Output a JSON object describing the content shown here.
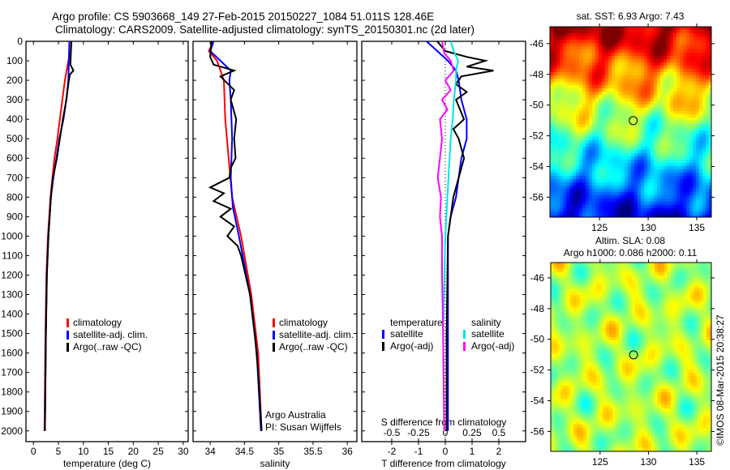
{
  "title_line1": "Argo profile: CS 5903668_149 27-Feb-2015 20150227_1084 51.011S 128.46E",
  "title_line2": "Climatology: CARS2009. Satellite-adjusted climatology: synTS_20150301.nc (2d later)",
  "credit": "©IMOS 08-Mar-2015 20:38:27",
  "colors": {
    "climatology": "#ff0000",
    "satellite": "#0000ff",
    "argo": "#000000",
    "sal_satellite": "#00e5e5",
    "sal_argo": "#ff00ff"
  },
  "chart_data": [
    {
      "type": "line",
      "xlabel": "temperature (deg C)",
      "ylabel": "",
      "xlim": [
        -1.5,
        31
      ],
      "ylim": [
        2055,
        0
      ],
      "xticks": [
        0,
        5,
        10,
        15,
        20,
        25,
        30
      ],
      "yticks": [
        0,
        100,
        200,
        300,
        400,
        500,
        600,
        700,
        800,
        900,
        1000,
        1100,
        1200,
        1300,
        1400,
        1500,
        1600,
        1700,
        1800,
        1900,
        2000
      ],
      "legend": [
        "climatology",
        "satellite-adj. clim.",
        "Argo(..raw -QC)"
      ],
      "series": [
        {
          "name": "climatology",
          "color": "climatology",
          "points": [
            [
              0,
              7.6
            ],
            [
              50,
              7.5
            ],
            [
              100,
              7.0
            ],
            [
              200,
              6.3
            ],
            [
              300,
              5.8
            ],
            [
              400,
              5.3
            ],
            [
              500,
              4.8
            ],
            [
              600,
              4.2
            ],
            [
              700,
              3.8
            ],
            [
              800,
              3.4
            ],
            [
              1000,
              2.9
            ],
            [
              1200,
              2.6
            ],
            [
              1500,
              2.4
            ],
            [
              2000,
              2.2
            ]
          ]
        },
        {
          "name": "satellite-adj. clim.",
          "color": "satellite",
          "points": [
            [
              0,
              7.2
            ],
            [
              100,
              7.1
            ],
            [
              200,
              7.0
            ],
            [
              300,
              6.6
            ],
            [
              400,
              6.0
            ],
            [
              500,
              5.2
            ],
            [
              600,
              4.6
            ],
            [
              700,
              4.0
            ],
            [
              800,
              3.5
            ],
            [
              1000,
              3.0
            ],
            [
              1200,
              2.7
            ],
            [
              1500,
              2.5
            ],
            [
              2000,
              2.3
            ]
          ]
        },
        {
          "name": "Argo(..raw -QC)",
          "color": "argo",
          "points": [
            [
              0,
              7.6
            ],
            [
              60,
              7.5
            ],
            [
              120,
              7.4
            ],
            [
              150,
              8.0
            ],
            [
              170,
              7.3
            ],
            [
              200,
              7.1
            ],
            [
              300,
              6.6
            ],
            [
              400,
              5.9
            ],
            [
              500,
              5.3
            ],
            [
              600,
              4.7
            ],
            [
              700,
              3.9
            ],
            [
              800,
              3.5
            ],
            [
              1000,
              3.0
            ],
            [
              1200,
              2.7
            ],
            [
              1500,
              2.5
            ],
            [
              2000,
              2.3
            ]
          ]
        }
      ]
    },
    {
      "type": "line",
      "xlabel": "salinity",
      "xlim": [
        33.75,
        36.14
      ],
      "ylim": [
        2055,
        0
      ],
      "xticks": [
        34,
        34.5,
        35,
        35.5,
        36
      ],
      "legend": [
        "climatology",
        "satellite-adj. clim.",
        "Argo(..raw -QC)"
      ],
      "annotation": [
        "Argo Australia",
        "PI: Susan Wijffels"
      ],
      "series": [
        {
          "name": "climatology",
          "color": "climatology",
          "points": [
            [
              0,
              34.05
            ],
            [
              50,
              33.98
            ],
            [
              100,
              34.1
            ],
            [
              200,
              34.2
            ],
            [
              400,
              34.22
            ],
            [
              600,
              34.27
            ],
            [
              800,
              34.32
            ],
            [
              1000,
              34.45
            ],
            [
              1300,
              34.6
            ],
            [
              1600,
              34.7
            ],
            [
              2000,
              34.75
            ]
          ]
        },
        {
          "name": "satellite-adj. clim.",
          "color": "satellite",
          "points": [
            [
              0,
              34.05
            ],
            [
              50,
              34.0
            ],
            [
              100,
              34.15
            ],
            [
              150,
              34.3
            ],
            [
              200,
              34.28
            ],
            [
              300,
              34.3
            ],
            [
              500,
              34.32
            ],
            [
              700,
              34.3
            ],
            [
              850,
              34.33
            ],
            [
              1000,
              34.42
            ],
            [
              1300,
              34.58
            ],
            [
              1600,
              34.68
            ],
            [
              2000,
              34.74
            ]
          ]
        },
        {
          "name": "Argo(..raw -QC)",
          "color": "argo",
          "points": [
            [
              0,
              34.02
            ],
            [
              80,
              34.0
            ],
            [
              120,
              34.05
            ],
            [
              150,
              34.35
            ],
            [
              180,
              34.15
            ],
            [
              250,
              34.35
            ],
            [
              300,
              34.3
            ],
            [
              400,
              34.38
            ],
            [
              500,
              34.35
            ],
            [
              600,
              34.37
            ],
            [
              650,
              34.3
            ],
            [
              700,
              34.28
            ],
            [
              750,
              34.0
            ],
            [
              780,
              34.2
            ],
            [
              820,
              34.05
            ],
            [
              860,
              34.3
            ],
            [
              900,
              34.15
            ],
            [
              950,
              34.35
            ],
            [
              1000,
              34.25
            ],
            [
              1050,
              34.4
            ],
            [
              1100,
              34.45
            ],
            [
              1300,
              34.58
            ],
            [
              1500,
              34.65
            ],
            [
              1700,
              34.7
            ],
            [
              2000,
              34.75
            ]
          ]
        }
      ]
    },
    {
      "type": "line",
      "xlabel": "T difference from climatology",
      "x2label": "S difference from climatology",
      "xlim": [
        -3.12,
        3.0
      ],
      "x2lim": [
        -0.78,
        0.75
      ],
      "ylim": [
        2055,
        0
      ],
      "xticks": [
        -2,
        -1,
        0,
        1,
        2
      ],
      "x2ticks": [
        -0.5,
        -0.25,
        0,
        0.25,
        0.5
      ],
      "legend_temperature": {
        "title": "temperature",
        "items": [
          "satellite",
          "Argo(-adj)"
        ]
      },
      "legend_salinity": {
        "title": "salinity",
        "items": [
          "satellite",
          "Argo(-adj)"
        ]
      },
      "series": [
        {
          "name": "T satellite",
          "axis": "T",
          "color": "satellite",
          "points": [
            [
              0,
              -0.7
            ],
            [
              50,
              -0.3
            ],
            [
              100,
              0.1
            ],
            [
              150,
              0.4
            ],
            [
              200,
              0.5
            ],
            [
              300,
              0.6
            ],
            [
              400,
              0.8
            ],
            [
              500,
              0.8
            ],
            [
              600,
              0.6
            ],
            [
              700,
              0.5
            ],
            [
              800,
              0.4
            ],
            [
              900,
              0.2
            ],
            [
              1000,
              0.1
            ],
            [
              2000,
              0.1
            ]
          ]
        },
        {
          "name": "T Argo(-adj)",
          "axis": "T",
          "color": "argo",
          "points": [
            [
              0,
              -0.3
            ],
            [
              50,
              0.0
            ],
            [
              80,
              0.8
            ],
            [
              100,
              1.5
            ],
            [
              130,
              0.8
            ],
            [
              150,
              1.8
            ],
            [
              180,
              0.6
            ],
            [
              220,
              0.4
            ],
            [
              260,
              0.8
            ],
            [
              300,
              0.4
            ],
            [
              400,
              0.7
            ],
            [
              450,
              0.3
            ],
            [
              500,
              0.5
            ],
            [
              600,
              0.7
            ],
            [
              700,
              0.5
            ],
            [
              800,
              0.3
            ],
            [
              900,
              0.2
            ],
            [
              1000,
              0.1
            ],
            [
              1500,
              0.05
            ],
            [
              2000,
              0.05
            ]
          ]
        },
        {
          "name": "S satellite",
          "axis": "S",
          "color": "sal_satellite",
          "points": [
            [
              0,
              0.05
            ],
            [
              50,
              0.08
            ],
            [
              100,
              0.12
            ],
            [
              150,
              0.1
            ],
            [
              200,
              0.1
            ],
            [
              300,
              0.08
            ],
            [
              400,
              0.07
            ],
            [
              500,
              0.05
            ],
            [
              600,
              0.04
            ],
            [
              800,
              0.02
            ],
            [
              1000,
              0.0
            ],
            [
              1500,
              -0.02
            ],
            [
              2000,
              -0.01
            ]
          ]
        },
        {
          "name": "S Argo(-adj)",
          "axis": "S",
          "color": "sal_argo",
          "points": [
            [
              0,
              -0.03
            ],
            [
              60,
              -0.01
            ],
            [
              100,
              0.05
            ],
            [
              150,
              0.08
            ],
            [
              200,
              0.0
            ],
            [
              250,
              0.05
            ],
            [
              300,
              -0.03
            ],
            [
              350,
              0.02
            ],
            [
              400,
              -0.05
            ],
            [
              500,
              -0.03
            ],
            [
              600,
              -0.05
            ],
            [
              700,
              -0.07
            ],
            [
              800,
              -0.04
            ],
            [
              900,
              -0.05
            ],
            [
              1000,
              -0.03
            ],
            [
              1200,
              -0.03
            ],
            [
              1500,
              -0.02
            ],
            [
              2000,
              -0.01
            ]
          ]
        }
      ]
    },
    {
      "type": "heatmap",
      "title": "sat. SST: 6.93 Argo: 7.43",
      "xlim": [
        119.9,
        136.5
      ],
      "ylim": [
        -57.3,
        -44.9
      ],
      "xticks": [
        125,
        130,
        135
      ],
      "yticks": [
        -46,
        -48,
        -50,
        -52,
        -54,
        -56
      ],
      "marker": [
        128.46,
        -51.011
      ]
    },
    {
      "type": "heatmap",
      "title": "Altim. SLA: 0.08",
      "subtitle": "Argo h1000: 0.086 h2000: 0.11",
      "xlim": [
        119.9,
        136.5
      ],
      "ylim": [
        -57.3,
        -45.0
      ],
      "xticks": [
        125,
        130,
        135
      ],
      "yticks": [
        -46,
        -48,
        -50,
        -52,
        -54,
        -56
      ],
      "marker": [
        128.46,
        -51.011
      ]
    }
  ]
}
